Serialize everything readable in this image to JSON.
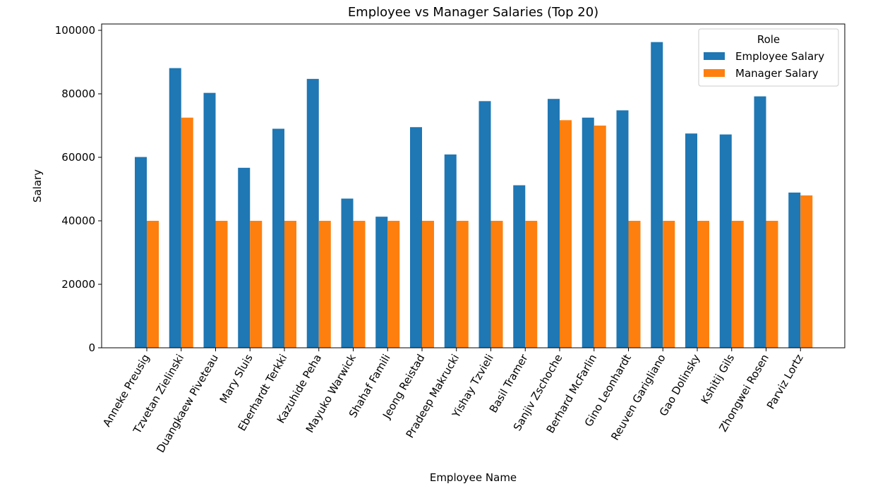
{
  "chart_data": {
    "type": "bar",
    "title": "Employee vs Manager Salaries (Top 20)",
    "xlabel": "Employee Name",
    "ylabel": "Salary",
    "ylim": [
      0,
      102000
    ],
    "yticks": [
      0,
      20000,
      40000,
      60000,
      80000,
      100000
    ],
    "grid": false,
    "legend": {
      "title": "Role",
      "placement": "top-right"
    },
    "categories": [
      "Anneke Preusig",
      "Tzvetan Zielinski",
      "Duangkaew Piveteau",
      "Mary Sluis",
      "Eberhardt Terkki",
      "Kazuhide Peha",
      "Mayuko Warwick",
      "Shahaf Famili",
      "Jeong Reistad",
      "Pradeep Makrucki",
      "Yishay Tzvieli",
      "Basil Tramer",
      "Sanjiv Zschoche",
      "Berhard McFarlin",
      "Gino Leonhardt",
      "Reuven Garigliano",
      "Gao Dolinsky",
      "Kshitij Gils",
      "Zhongwei Rosen",
      "Parviz Lortz"
    ],
    "series": [
      {
        "name": "Employee Salary",
        "color": "#1f77b4",
        "values": [
          60100,
          88100,
          80300,
          56700,
          69000,
          84700,
          47000,
          41300,
          69500,
          60900,
          77700,
          51200,
          78400,
          72500,
          74800,
          96300,
          67500,
          67200,
          79200,
          48900
        ]
      },
      {
        "name": "Manager Salary",
        "color": "#ff7f0e",
        "values": [
          40000,
          72500,
          40000,
          40000,
          40000,
          40000,
          40000,
          40000,
          40000,
          40000,
          40000,
          40000,
          71700,
          70000,
          40000,
          40000,
          40000,
          40000,
          40000,
          48000
        ]
      }
    ]
  }
}
